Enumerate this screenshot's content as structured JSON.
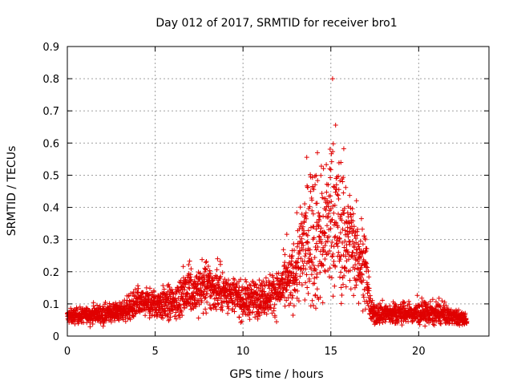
{
  "chart_data": {
    "type": "scatter",
    "title": "Day 012 of 2017, SRMTID for receiver bro1",
    "xlabel": "GPS time / hours",
    "ylabel": "SRMTID / TECUs",
    "xlim": [
      0,
      24
    ],
    "ylim": [
      0,
      0.9
    ],
    "xticks": [
      0,
      5,
      10,
      15,
      20
    ],
    "yticks": [
      0,
      0.1,
      0.2,
      0.3,
      0.4,
      0.5,
      0.6,
      0.7,
      0.8,
      0.9
    ],
    "marker": "+",
    "color": "#e00000",
    "grid": true,
    "series": [
      {
        "name": "SRMTID",
        "x_start": 0.0,
        "x_end": 22.75,
        "x_step": 0.0083,
        "envelope_hours": [
          0,
          1,
          2,
          3,
          4,
          5,
          6,
          7,
          8,
          9,
          10,
          11,
          12,
          12.8,
          13.5,
          14,
          14.5,
          15,
          15.5,
          16,
          16.5,
          17,
          17.3,
          17.8,
          19,
          20,
          21,
          22,
          22.75
        ],
        "envelope_median": [
          0.06,
          0.065,
          0.07,
          0.075,
          0.1,
          0.1,
          0.1,
          0.14,
          0.15,
          0.14,
          0.11,
          0.12,
          0.14,
          0.18,
          0.28,
          0.33,
          0.3,
          0.38,
          0.33,
          0.3,
          0.27,
          0.2,
          0.07,
          0.07,
          0.07,
          0.07,
          0.07,
          0.06,
          0.05
        ],
        "envelope_spread": [
          0.02,
          0.02,
          0.025,
          0.025,
          0.04,
          0.04,
          0.05,
          0.06,
          0.07,
          0.05,
          0.05,
          0.05,
          0.06,
          0.08,
          0.15,
          0.22,
          0.18,
          0.22,
          0.2,
          0.15,
          0.13,
          0.1,
          0.03,
          0.03,
          0.03,
          0.03,
          0.03,
          0.02,
          0.02
        ],
        "max_value": 0.8
      }
    ]
  }
}
